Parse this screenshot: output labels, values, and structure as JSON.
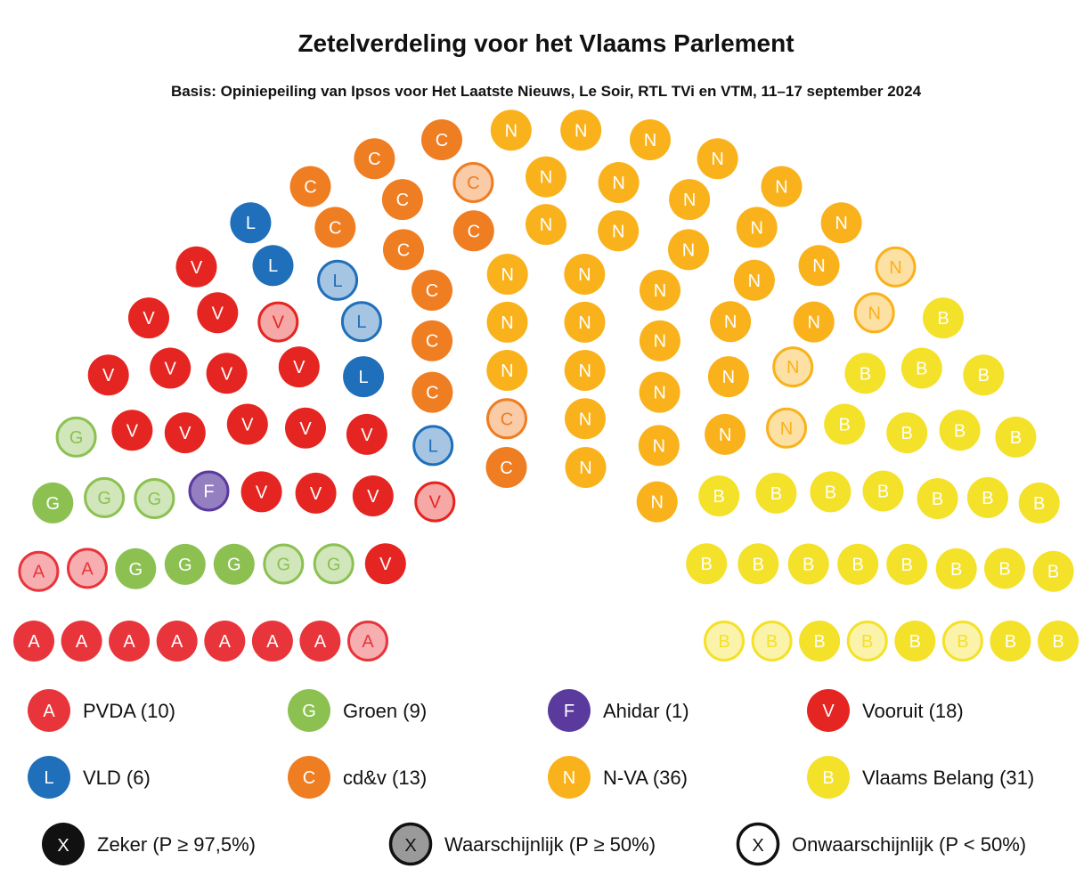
{
  "chart_data": {
    "type": "parliament",
    "title": "Zetelverdeling voor het Vlaams Parlement",
    "subtitle": "Basis: Opiniepeiling van Ipsos voor Het Laatste Nieuws, Le Soir, RTL TVi en VTM, 11–17 september 2024",
    "total_seats": 124,
    "parties": [
      {
        "key": "A",
        "name": "PVDA",
        "seats": 10,
        "color": "#e8353b",
        "certain": 7,
        "likely": 0,
        "unlikely": 3
      },
      {
        "key": "G",
        "name": "Groen",
        "seats": 9,
        "color": "#8cc152",
        "certain": 4,
        "likely": 0,
        "unlikely": 5
      },
      {
        "key": "F",
        "name": "Ahidar",
        "seats": 1,
        "color": "#5b3a9e",
        "certain": 0,
        "likely": 1,
        "unlikely": 0
      },
      {
        "key": "V",
        "name": "Vooruit",
        "seats": 18,
        "color": "#e52521",
        "certain": 16,
        "likely": 0,
        "unlikely": 2
      },
      {
        "key": "L",
        "name": "VLD",
        "seats": 6,
        "color": "#1f6fba",
        "certain": 3,
        "likely": 0,
        "unlikely": 3
      },
      {
        "key": "C",
        "name": "cd&v",
        "seats": 13,
        "color": "#ef7d22",
        "certain": 11,
        "likely": 0,
        "unlikely": 2
      },
      {
        "key": "N",
        "name": "N-VA",
        "seats": 36,
        "color": "#f9b21b",
        "certain": 32,
        "likely": 0,
        "unlikely": 4
      },
      {
        "key": "B",
        "name": "Vlaams Belang",
        "seats": 31,
        "color": "#f4e12a",
        "certain": 27,
        "likely": 0,
        "unlikely": 4
      }
    ],
    "legend": [
      {
        "key": "A",
        "label": "PVDA (10)"
      },
      {
        "key": "G",
        "label": "Groen (9)"
      },
      {
        "key": "F",
        "label": "Ahidar (1)"
      },
      {
        "key": "V",
        "label": "Vooruit (18)"
      },
      {
        "key": "L",
        "label": "VLD (6)"
      },
      {
        "key": "C",
        "label": "cd&v (13)"
      },
      {
        "key": "N",
        "label": "N-VA (36)"
      },
      {
        "key": "B",
        "label": "Vlaams Belang (31)"
      }
    ],
    "certainty_legend": [
      {
        "symbol": "X",
        "label": "Zeker (P ≥ 97,5%)",
        "style": "certain"
      },
      {
        "symbol": "X",
        "label": "Waarschijnlijk (P ≥ 50%)",
        "style": "likely"
      },
      {
        "symbol": "X",
        "label": "Onwaarschijnlijk (P < 50%)",
        "style": "unlikely"
      }
    ]
  }
}
